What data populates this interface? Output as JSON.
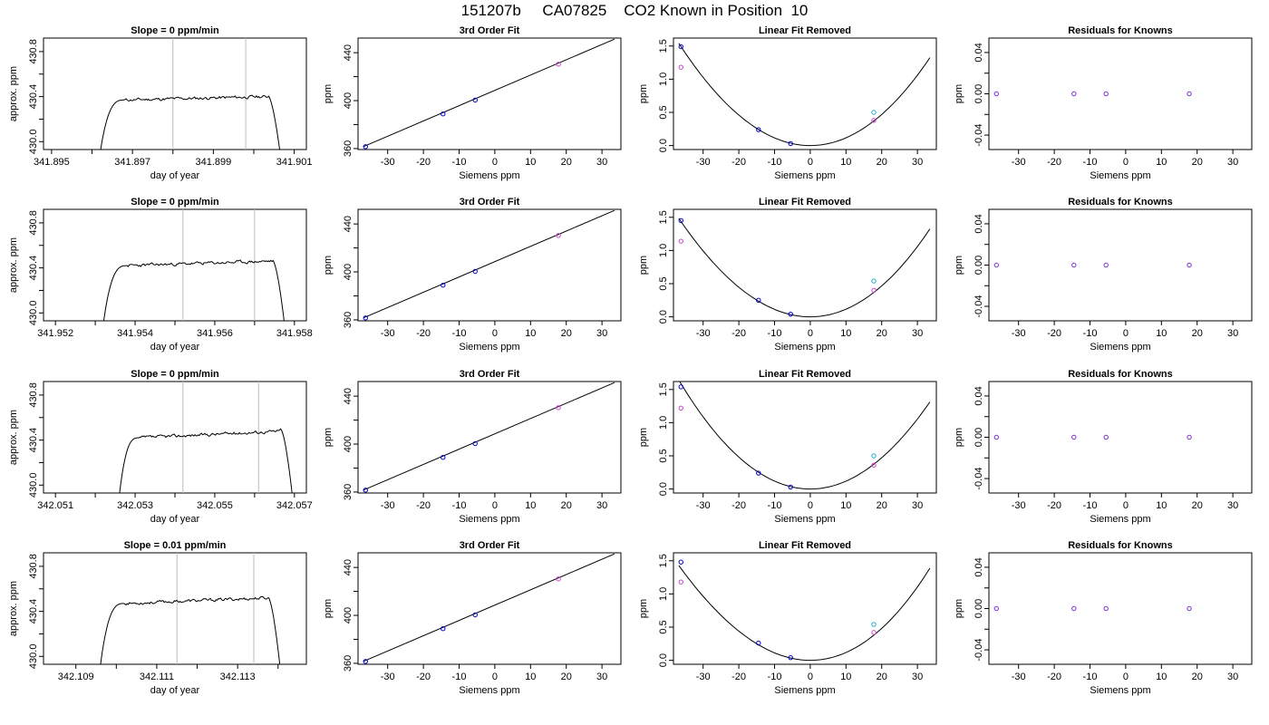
{
  "page": {
    "title": "151207b     CA07825    CO2 Known in Position  10"
  },
  "chart_data": [
    {
      "type": "line",
      "title": "Slope =  0  ppm/min",
      "xlabel": "day of year",
      "ylabel": "approx. ppm",
      "xlim": [
        341.8948,
        341.9013
      ],
      "ylim": [
        429.93,
        430.92
      ],
      "xticks": [
        "341.895",
        "341.897",
        "341.899",
        "341.901"
      ],
      "xtick_values": [
        341.895,
        341.897,
        341.899,
        341.901
      ],
      "xminor": [
        341.896,
        341.898,
        341.9
      ],
      "yticks": [
        "430.0",
        "430.4",
        "430.8"
      ],
      "ytick_values": [
        430.0,
        430.4,
        430.8
      ],
      "yminor": [
        430.2,
        430.6
      ],
      "vlines": [
        341.898,
        341.8998
      ],
      "trace": {
        "x_start": 341.8962,
        "x_end": 341.90065,
        "rise_end": 341.8968,
        "fall_start": 341.90035,
        "base": 429.9,
        "level": 430.37,
        "level_end": 430.4,
        "top": 430.41,
        "noise": 0.014,
        "seed": 11
      }
    },
    {
      "type": "scatter",
      "title": "3rd Order Fit",
      "xlabel": "Siemens ppm",
      "ylabel": "ppm",
      "xlim": [
        -38.3,
        35.3
      ],
      "ylim": [
        359.2,
        452.2
      ],
      "xticks": [
        "-30",
        "-20",
        "-10",
        "0",
        "10",
        "20",
        "30"
      ],
      "xtick_values": [
        -30,
        -20,
        -10,
        0,
        10,
        20,
        30
      ],
      "yticks": [
        "360",
        "400",
        "440"
      ],
      "ytick_values": [
        360,
        400,
        440
      ],
      "yminor": [
        380,
        420
      ],
      "fit": {
        "kind": "line",
        "x": [
          -36.8,
          33.5
        ],
        "y": [
          361.6,
          451.3
        ]
      },
      "points": [
        {
          "x": -36.2,
          "y": 361.6,
          "color": "#0000cc"
        },
        {
          "x": -14.5,
          "y": 388.9,
          "color": "#0000cc"
        },
        {
          "x": -5.5,
          "y": 400.4,
          "color": "#0000cc"
        },
        {
          "x": 17.8,
          "y": 430.4,
          "color": "#cc44cc"
        }
      ]
    },
    {
      "type": "scatter",
      "title": "Linear Fit Removed",
      "xlabel": "Siemens ppm",
      "ylabel": "ppm",
      "xlim": [
        -38.3,
        35.3
      ],
      "ylim": [
        -0.06,
        1.62
      ],
      "xticks": [
        "-30",
        "-20",
        "-10",
        "0",
        "10",
        "20",
        "30"
      ],
      "xtick_values": [
        -30,
        -20,
        -10,
        0,
        10,
        20,
        30
      ],
      "yticks": [
        "0.0",
        "0.5",
        "1.0",
        "1.5"
      ],
      "ytick_values": [
        0,
        0.5,
        1.0,
        1.5
      ],
      "fit": {
        "kind": "poly",
        "coef": [
          0.00116,
          0,
          6e-07
        ],
        "x_range": [
          -36.8,
          33.5
        ]
      },
      "points": [
        {
          "x": -36.2,
          "y": 1.49,
          "color": "#0000cc"
        },
        {
          "x": -36.2,
          "y": 1.18,
          "color": "#cc44cc"
        },
        {
          "x": -14.5,
          "y": 0.24,
          "color": "#0000cc"
        },
        {
          "x": -5.5,
          "y": 0.03,
          "color": "#0000cc"
        },
        {
          "x": 17.8,
          "y": 0.5,
          "color": "#22aacc"
        },
        {
          "x": 17.8,
          "y": 0.38,
          "color": "#cc44cc"
        }
      ]
    },
    {
      "type": "scatter",
      "title": "Residuals for Knowns",
      "xlabel": "Siemens ppm",
      "ylabel": "ppm",
      "xlim": [
        -38.3,
        35.3
      ],
      "ylim": [
        -0.054,
        0.054
      ],
      "xticks": [
        "-30",
        "-20",
        "-10",
        "0",
        "10",
        "20",
        "30"
      ],
      "xtick_values": [
        -30,
        -20,
        -10,
        0,
        10,
        20,
        30
      ],
      "yticks": [
        "-0.04",
        "0.00",
        "0.04"
      ],
      "ytick_values": [
        -0.04,
        0,
        0.04
      ],
      "yminor": [
        -0.02,
        0.02
      ],
      "points": [
        {
          "x": -36.2,
          "y": 0,
          "color": "#7a2cd6"
        },
        {
          "x": -14.5,
          "y": 0,
          "color": "#7a2cd6"
        },
        {
          "x": -5.5,
          "y": 0,
          "color": "#7a2cd6"
        },
        {
          "x": 17.8,
          "y": 0,
          "color": "#7a2cd6"
        }
      ]
    },
    {
      "type": "line",
      "title": "Slope =  0  ppm/min",
      "xlabel": "day of year",
      "ylabel": "approx. ppm",
      "xlim": [
        341.9517,
        341.9583
      ],
      "ylim": [
        429.93,
        430.92
      ],
      "xticks": [
        "341.952",
        "341.954",
        "341.956",
        "341.958"
      ],
      "xtick_values": [
        341.952,
        341.954,
        341.956,
        341.958
      ],
      "xminor": [
        341.953,
        341.955,
        341.957
      ],
      "yticks": [
        "430.0",
        "430.4",
        "430.8"
      ],
      "ytick_values": [
        430.0,
        430.4,
        430.8
      ],
      "yminor": [
        430.2,
        430.6
      ],
      "vlines": [
        341.9552,
        341.957
      ],
      "trace": {
        "x_start": 341.9532,
        "x_end": 341.95775,
        "rise_end": 341.9538,
        "fall_start": 341.95745,
        "base": 429.9,
        "level": 430.42,
        "level_end": 430.46,
        "top": 430.47,
        "noise": 0.014,
        "seed": 23
      }
    },
    {
      "type": "scatter",
      "title": "3rd Order Fit",
      "xlabel": "Siemens ppm",
      "ylabel": "ppm",
      "xlim": [
        -38.3,
        35.3
      ],
      "ylim": [
        359.2,
        452.2
      ],
      "xticks": [
        "-30",
        "-20",
        "-10",
        "0",
        "10",
        "20",
        "30"
      ],
      "xtick_values": [
        -30,
        -20,
        -10,
        0,
        10,
        20,
        30
      ],
      "yticks": [
        "360",
        "400",
        "440"
      ],
      "ytick_values": [
        360,
        400,
        440
      ],
      "yminor": [
        380,
        420
      ],
      "fit": {
        "kind": "line",
        "x": [
          -36.8,
          33.5
        ],
        "y": [
          361.6,
          451.3
        ]
      },
      "points": [
        {
          "x": -36.2,
          "y": 361.6,
          "color": "#0000cc"
        },
        {
          "x": -14.5,
          "y": 388.9,
          "color": "#0000cc"
        },
        {
          "x": -5.5,
          "y": 400.4,
          "color": "#0000cc"
        },
        {
          "x": 17.8,
          "y": 430.4,
          "color": "#cc44cc"
        }
      ]
    },
    {
      "type": "scatter",
      "title": "Linear Fit Removed",
      "xlabel": "Siemens ppm",
      "ylabel": "ppm",
      "xlim": [
        -38.3,
        35.3
      ],
      "ylim": [
        -0.06,
        1.62
      ],
      "xticks": [
        "-30",
        "-20",
        "-10",
        "0",
        "10",
        "20",
        "30"
      ],
      "xtick_values": [
        -30,
        -20,
        -10,
        0,
        10,
        20,
        30
      ],
      "yticks": [
        "0.0",
        "0.5",
        "1.0",
        "1.5"
      ],
      "ytick_values": [
        0,
        0.5,
        1.0,
        1.5
      ],
      "fit": {
        "kind": "poly",
        "coef": [
          0.00114,
          0,
          1.2e-06
        ],
        "x_range": [
          -36.8,
          33.5
        ]
      },
      "points": [
        {
          "x": -36.2,
          "y": 1.45,
          "color": "#0000cc"
        },
        {
          "x": -36.2,
          "y": 1.14,
          "color": "#cc44cc"
        },
        {
          "x": -14.5,
          "y": 0.25,
          "color": "#0000cc"
        },
        {
          "x": -5.5,
          "y": 0.04,
          "color": "#0000cc"
        },
        {
          "x": 17.8,
          "y": 0.54,
          "color": "#22aacc"
        },
        {
          "x": 17.8,
          "y": 0.4,
          "color": "#cc44cc"
        }
      ]
    },
    {
      "type": "scatter",
      "title": "Residuals for Knowns",
      "xlabel": "Siemens ppm",
      "ylabel": "ppm",
      "xlim": [
        -38.3,
        35.3
      ],
      "ylim": [
        -0.054,
        0.054
      ],
      "xticks": [
        "-30",
        "-20",
        "-10",
        "0",
        "10",
        "20",
        "30"
      ],
      "xtick_values": [
        -30,
        -20,
        -10,
        0,
        10,
        20,
        30
      ],
      "yticks": [
        "-0.04",
        "0.00",
        "0.04"
      ],
      "ytick_values": [
        -0.04,
        0,
        0.04
      ],
      "yminor": [
        -0.02,
        0.02
      ],
      "points": [
        {
          "x": -36.2,
          "y": 0,
          "color": "#7a2cd6"
        },
        {
          "x": -14.5,
          "y": 0,
          "color": "#7a2cd6"
        },
        {
          "x": -5.5,
          "y": 0,
          "color": "#7a2cd6"
        },
        {
          "x": 17.8,
          "y": 0,
          "color": "#7a2cd6"
        }
      ]
    },
    {
      "type": "line",
      "title": "Slope =  0  ppm/min",
      "xlabel": "day of year",
      "ylabel": "approx. ppm",
      "xlim": [
        342.0507,
        342.0573
      ],
      "ylim": [
        429.93,
        430.92
      ],
      "xticks": [
        "342.051",
        "342.053",
        "342.055",
        "342.057"
      ],
      "xtick_values": [
        342.051,
        342.053,
        342.055,
        342.057
      ],
      "xminor": [
        342.052,
        342.054,
        342.056
      ],
      "yticks": [
        "430.0",
        "430.4",
        "430.8"
      ],
      "ytick_values": [
        430.0,
        430.4,
        430.8
      ],
      "yminor": [
        430.2,
        430.6
      ],
      "vlines": [
        342.0542,
        342.0561
      ],
      "trace": {
        "x_start": 342.0526,
        "x_end": 342.05695,
        "rise_end": 342.0531,
        "fall_start": 342.05665,
        "base": 429.9,
        "level": 430.42,
        "level_end": 430.48,
        "top": 430.5,
        "noise": 0.014,
        "seed": 37
      }
    },
    {
      "type": "scatter",
      "title": "3rd Order Fit",
      "xlabel": "Siemens ppm",
      "ylabel": "ppm",
      "xlim": [
        -38.3,
        35.3
      ],
      "ylim": [
        359.2,
        452.2
      ],
      "xticks": [
        "-30",
        "-20",
        "-10",
        "0",
        "10",
        "20",
        "30"
      ],
      "xtick_values": [
        -30,
        -20,
        -10,
        0,
        10,
        20,
        30
      ],
      "yticks": [
        "360",
        "400",
        "440"
      ],
      "ytick_values": [
        360,
        400,
        440
      ],
      "yminor": [
        380,
        420
      ],
      "fit": {
        "kind": "line",
        "x": [
          -36.8,
          33.5
        ],
        "y": [
          361.6,
          451.3
        ]
      },
      "points": [
        {
          "x": -36.2,
          "y": 361.6,
          "color": "#0000cc"
        },
        {
          "x": -14.5,
          "y": 388.9,
          "color": "#0000cc"
        },
        {
          "x": -5.5,
          "y": 400.4,
          "color": "#0000cc"
        },
        {
          "x": 17.8,
          "y": 430.4,
          "color": "#cc44cc"
        }
      ]
    },
    {
      "type": "scatter",
      "title": "Linear Fit Removed",
      "xlabel": "Siemens ppm",
      "ylabel": "ppm",
      "xlim": [
        -38.3,
        35.3
      ],
      "ylim": [
        -0.06,
        1.62
      ],
      "xticks": [
        "-30",
        "-20",
        "-10",
        "0",
        "10",
        "20",
        "30"
      ],
      "xtick_values": [
        -30,
        -20,
        -10,
        0,
        10,
        20,
        30
      ],
      "yticks": [
        "0.0",
        "0.5",
        "1.0",
        "1.5"
      ],
      "ytick_values": [
        0,
        0.5,
        1.0,
        1.5
      ],
      "fit": {
        "kind": "poly",
        "coef": [
          0.00119,
          0,
          -6e-07
        ],
        "x_range": [
          -36.8,
          33.5
        ]
      },
      "points": [
        {
          "x": -36.2,
          "y": 1.54,
          "color": "#0000cc"
        },
        {
          "x": -36.2,
          "y": 1.22,
          "color": "#cc44cc"
        },
        {
          "x": -14.5,
          "y": 0.24,
          "color": "#0000cc"
        },
        {
          "x": -5.5,
          "y": 0.03,
          "color": "#0000cc"
        },
        {
          "x": 17.8,
          "y": 0.5,
          "color": "#22aacc"
        },
        {
          "x": 17.8,
          "y": 0.36,
          "color": "#cc44cc"
        }
      ]
    },
    {
      "type": "scatter",
      "title": "Residuals for Knowns",
      "xlabel": "Siemens ppm",
      "ylabel": "ppm",
      "xlim": [
        -38.3,
        35.3
      ],
      "ylim": [
        -0.054,
        0.054
      ],
      "xticks": [
        "-30",
        "-20",
        "-10",
        "0",
        "10",
        "20",
        "30"
      ],
      "xtick_values": [
        -30,
        -20,
        -10,
        0,
        10,
        20,
        30
      ],
      "yticks": [
        "-0.04",
        "0.00",
        "0.04"
      ],
      "ytick_values": [
        -0.04,
        0,
        0.04
      ],
      "yminor": [
        -0.02,
        0.02
      ],
      "points": [
        {
          "x": -36.2,
          "y": 0,
          "color": "#7a2cd6"
        },
        {
          "x": -14.5,
          "y": 0,
          "color": "#7a2cd6"
        },
        {
          "x": -5.5,
          "y": 0,
          "color": "#7a2cd6"
        },
        {
          "x": 17.8,
          "y": 0,
          "color": "#7a2cd6"
        }
      ]
    },
    {
      "type": "line",
      "title": "Slope =  0.01  ppm/min",
      "xlabel": "day of year",
      "ylabel": "approx. ppm",
      "xlim": [
        342.1082,
        342.1147
      ],
      "ylim": [
        429.93,
        430.92
      ],
      "xticks": [
        "342.109",
        "342.111",
        "342.113"
      ],
      "xtick_values": [
        342.109,
        342.111,
        342.113
      ],
      "xminor": [
        342.11,
        342.112,
        342.114
      ],
      "yticks": [
        "430.0",
        "430.4",
        "430.8"
      ],
      "ytick_values": [
        430.0,
        430.4,
        430.8
      ],
      "yminor": [
        430.2,
        430.6
      ],
      "vlines": [
        342.1115,
        342.1134
      ],
      "trace": {
        "x_start": 342.1096,
        "x_end": 342.11405,
        "rise_end": 342.1102,
        "fall_start": 342.11375,
        "base": 429.9,
        "level": 430.47,
        "level_end": 430.52,
        "top": 430.53,
        "noise": 0.014,
        "seed": 53
      }
    },
    {
      "type": "scatter",
      "title": "3rd Order Fit",
      "xlabel": "Siemens ppm",
      "ylabel": "ppm",
      "xlim": [
        -38.3,
        35.3
      ],
      "ylim": [
        359.2,
        452.2
      ],
      "xticks": [
        "-30",
        "-20",
        "-10",
        "0",
        "10",
        "20",
        "30"
      ],
      "xtick_values": [
        -30,
        -20,
        -10,
        0,
        10,
        20,
        30
      ],
      "yticks": [
        "360",
        "400",
        "440"
      ],
      "ytick_values": [
        360,
        400,
        440
      ],
      "yminor": [
        380,
        420
      ],
      "fit": {
        "kind": "line",
        "x": [
          -36.8,
          33.5
        ],
        "y": [
          361.6,
          451.3
        ]
      },
      "points": [
        {
          "x": -36.2,
          "y": 361.6,
          "color": "#0000cc"
        },
        {
          "x": -14.5,
          "y": 388.9,
          "color": "#0000cc"
        },
        {
          "x": -5.5,
          "y": 400.4,
          "color": "#0000cc"
        },
        {
          "x": 17.8,
          "y": 430.4,
          "color": "#cc44cc"
        }
      ]
    },
    {
      "type": "scatter",
      "title": "Linear Fit Removed",
      "xlabel": "Siemens ppm",
      "ylabel": "ppm",
      "xlim": [
        -38.3,
        35.3
      ],
      "ylim": [
        -0.06,
        1.62
      ],
      "xticks": [
        "-30",
        "-20",
        "-10",
        "0",
        "10",
        "20",
        "30"
      ],
      "xtick_values": [
        -30,
        -20,
        -10,
        0,
        10,
        20,
        30
      ],
      "yticks": [
        "0.0",
        "0.5",
        "1.0",
        "1.5"
      ],
      "ytick_values": [
        0,
        0.5,
        1.0,
        1.5
      ],
      "fit": {
        "kind": "poly",
        "coef": [
          0.00115,
          0,
          2.6e-06
        ],
        "x_range": [
          -36.8,
          33.5
        ]
      },
      "points": [
        {
          "x": -36.2,
          "y": 1.48,
          "color": "#0000cc"
        },
        {
          "x": -36.2,
          "y": 1.18,
          "color": "#cc44cc"
        },
        {
          "x": -14.5,
          "y": 0.26,
          "color": "#0000cc"
        },
        {
          "x": -5.5,
          "y": 0.04,
          "color": "#0000cc"
        },
        {
          "x": 17.8,
          "y": 0.54,
          "color": "#22aacc"
        },
        {
          "x": 17.8,
          "y": 0.42,
          "color": "#cc44cc"
        }
      ]
    },
    {
      "type": "scatter",
      "title": "Residuals for Knowns",
      "xlabel": "Siemens ppm",
      "ylabel": "ppm",
      "xlim": [
        -38.3,
        35.3
      ],
      "ylim": [
        -0.054,
        0.054
      ],
      "xticks": [
        "-30",
        "-20",
        "-10",
        "0",
        "10",
        "20",
        "30"
      ],
      "xtick_values": [
        -30,
        -20,
        -10,
        0,
        10,
        20,
        30
      ],
      "yticks": [
        "-0.04",
        "0.00",
        "0.04"
      ],
      "ytick_values": [
        -0.04,
        0,
        0.04
      ],
      "yminor": [
        -0.02,
        0.02
      ],
      "points": [
        {
          "x": -36.2,
          "y": 0,
          "color": "#7a2cd6"
        },
        {
          "x": -14.5,
          "y": 0,
          "color": "#7a2cd6"
        },
        {
          "x": -5.5,
          "y": 0,
          "color": "#7a2cd6"
        },
        {
          "x": 17.8,
          "y": 0,
          "color": "#7a2cd6"
        }
      ]
    }
  ]
}
